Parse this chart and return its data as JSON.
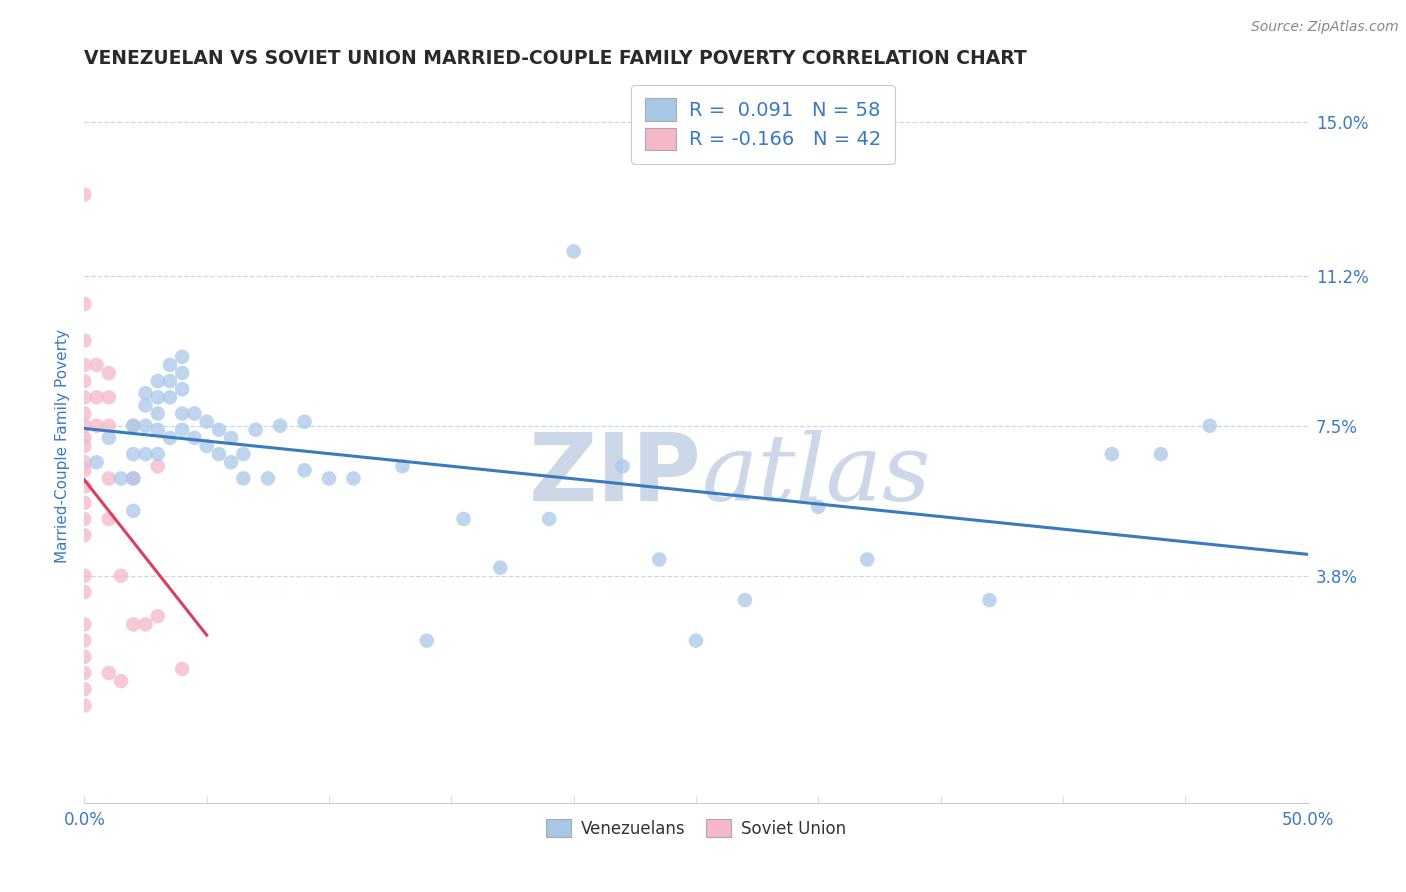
{
  "title": "VENEZUELAN VS SOVIET UNION MARRIED-COUPLE FAMILY POVERTY CORRELATION CHART",
  "source": "Source: ZipAtlas.com",
  "ylabel": "Married-Couple Family Poverty",
  "xlim": [
    0.0,
    0.5
  ],
  "ylim": [
    -0.018,
    0.158
  ],
  "ytick_values": [
    0.0,
    0.038,
    0.075,
    0.112,
    0.15
  ],
  "ytick_labels": [
    "",
    "3.8%",
    "7.5%",
    "11.2%",
    "15.0%"
  ],
  "xtick_values": [
    0.0,
    0.05,
    0.1,
    0.15,
    0.2,
    0.25,
    0.3,
    0.35,
    0.4,
    0.45,
    0.5
  ],
  "xtick_labels": [
    "0.0%",
    "",
    "",
    "",
    "",
    "",
    "",
    "",
    "",
    "",
    "50.0%"
  ],
  "venezuelan_color": "#a8c8e8",
  "soviet_color": "#f4b8c8",
  "venezuelan_line_color": "#3a7abf",
  "soviet_line_color": "#d94060",
  "R_venezuelan": 0.091,
  "N_venezuelan": 58,
  "R_soviet": -0.166,
  "N_soviet": 42,
  "venezuelan_x": [
    0.005,
    0.01,
    0.015,
    0.02,
    0.02,
    0.02,
    0.02,
    0.025,
    0.025,
    0.025,
    0.025,
    0.03,
    0.03,
    0.03,
    0.03,
    0.03,
    0.035,
    0.035,
    0.035,
    0.035,
    0.04,
    0.04,
    0.04,
    0.04,
    0.04,
    0.045,
    0.045,
    0.05,
    0.05,
    0.055,
    0.055,
    0.06,
    0.06,
    0.065,
    0.065,
    0.07,
    0.075,
    0.08,
    0.09,
    0.09,
    0.1,
    0.11,
    0.13,
    0.14,
    0.155,
    0.17,
    0.19,
    0.2,
    0.22,
    0.235,
    0.25,
    0.27,
    0.3,
    0.32,
    0.37,
    0.42,
    0.44,
    0.46
  ],
  "venezuelan_y": [
    0.066,
    0.072,
    0.062,
    0.075,
    0.068,
    0.062,
    0.054,
    0.083,
    0.08,
    0.075,
    0.068,
    0.086,
    0.082,
    0.078,
    0.074,
    0.068,
    0.09,
    0.086,
    0.082,
    0.072,
    0.092,
    0.088,
    0.084,
    0.078,
    0.074,
    0.078,
    0.072,
    0.076,
    0.07,
    0.074,
    0.068,
    0.072,
    0.066,
    0.068,
    0.062,
    0.074,
    0.062,
    0.075,
    0.076,
    0.064,
    0.062,
    0.062,
    0.065,
    0.022,
    0.052,
    0.04,
    0.052,
    0.118,
    0.065,
    0.042,
    0.022,
    0.032,
    0.055,
    0.042,
    0.032,
    0.068,
    0.068,
    0.075
  ],
  "soviet_x": [
    0.0,
    0.0,
    0.0,
    0.0,
    0.0,
    0.0,
    0.0,
    0.0,
    0.0,
    0.0,
    0.0,
    0.0,
    0.0,
    0.0,
    0.0,
    0.0,
    0.0,
    0.0,
    0.0,
    0.0,
    0.0,
    0.0,
    0.0,
    0.0,
    0.005,
    0.005,
    0.005,
    0.01,
    0.01,
    0.01,
    0.01,
    0.01,
    0.01,
    0.015,
    0.015,
    0.02,
    0.02,
    0.02,
    0.025,
    0.03,
    0.03,
    0.04
  ],
  "soviet_y": [
    0.132,
    0.105,
    0.096,
    0.09,
    0.086,
    0.082,
    0.078,
    0.075,
    0.072,
    0.07,
    0.066,
    0.064,
    0.06,
    0.056,
    0.052,
    0.048,
    0.038,
    0.034,
    0.026,
    0.022,
    0.018,
    0.014,
    0.01,
    0.006,
    0.09,
    0.082,
    0.075,
    0.088,
    0.082,
    0.075,
    0.062,
    0.052,
    0.014,
    0.038,
    0.012,
    0.075,
    0.062,
    0.026,
    0.026,
    0.065,
    0.028,
    0.015
  ],
  "background_color": "#ffffff",
  "title_color": "#2a2a2a",
  "source_color": "#888888",
  "ylabel_color": "#3a7abf",
  "tick_color": "#3a7abf",
  "grid_color": "#c8d8e8",
  "watermark_zip_color": "#ccd8e8",
  "watermark_atlas_color": "#ccd8e8"
}
